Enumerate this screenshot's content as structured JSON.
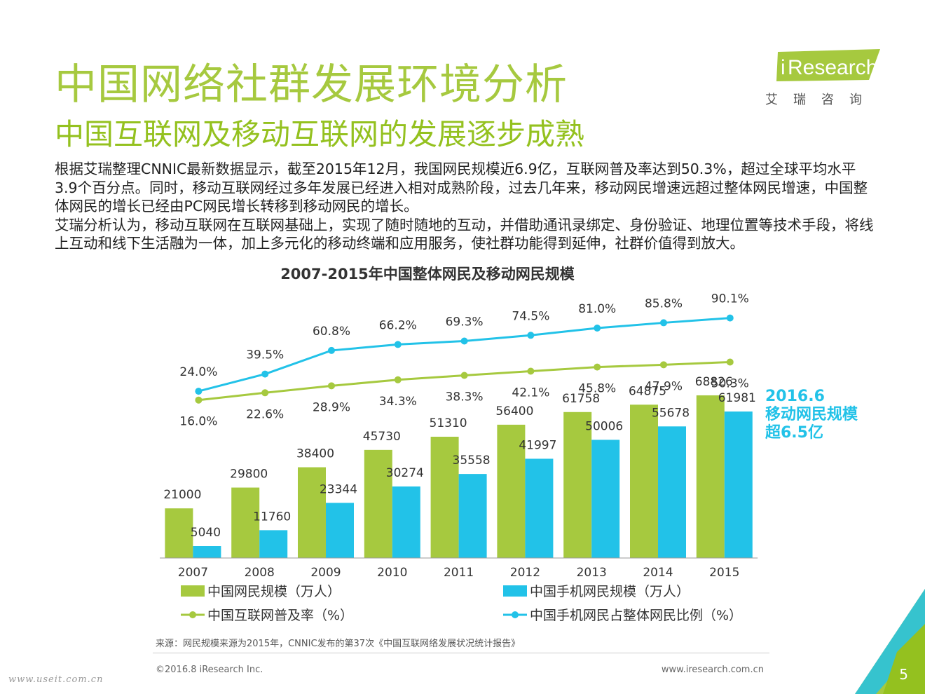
{
  "page": {
    "title": "中国网络社群发展环境分析",
    "subtitle": "中国互联网及移动互联网的发展逐步成熟",
    "paragraphs": [
      "根据艾瑞整理CNNIC最新数据显示，截至2015年12月，我国网民规模近6.9亿，互联网普及率达到50.3%，超过全球平均水平3.9个百分点。同时，移动互联网经过多年发展已经进入相对成熟阶段，过去几年来，移动网民增速远超过整体网民增速，中国整体网民的增长已经由PC网民增长转移到移动网民的增长。",
      "艾瑞分析认为，移动互联网在互联网基础上，实现了随时随地的互动，并借助通讯录绑定、身份验证、地理位置等技术手段，将线上互动和线下生活融为一体，加上多元化的移动终端和应用服务，使社群功能得到延伸，社群价值得到放大。"
    ],
    "annotation": [
      "2016.6",
      "移动网民规模",
      "超6.5亿"
    ],
    "source": "来源：网民规模来源为2015年，CNNIC发布的第37次《中国互联网络发展状况统计报告》",
    "copyright": "©2016.8 iResearch Inc.",
    "url": "www.iresearch.com.cn",
    "page_number": "5",
    "watermark": "www.useit.com.cn"
  },
  "logo": {
    "brand_i": "i",
    "brand_rest": "Research",
    "chinese": "艾瑞咨询"
  },
  "colors": {
    "green": "#a6c93f",
    "blue": "#22c2e8",
    "title_green": "#a6c93f"
  },
  "chart_data": {
    "type": "bar",
    "title": "2007-2015年中国整体网民及移动网民规模",
    "categories": [
      "2007",
      "2008",
      "2009",
      "2010",
      "2011",
      "2012",
      "2013",
      "2014",
      "2015"
    ],
    "series": [
      {
        "name": "中国网民规模（万人）",
        "kind": "bar",
        "color": "#a6c93f",
        "values": [
          21000,
          29800,
          38400,
          45730,
          51310,
          56400,
          61758,
          64875,
          68826
        ]
      },
      {
        "name": "中国手机网民规模（万人）",
        "kind": "bar",
        "color": "#22c2e8",
        "values": [
          5040,
          11760,
          23344,
          30274,
          35558,
          41997,
          50006,
          55678,
          61981
        ]
      },
      {
        "name": "中国互联网普及率（%）",
        "kind": "line",
        "color": "#a6c93f",
        "values": [
          16.0,
          22.6,
          28.9,
          34.3,
          38.3,
          42.1,
          45.8,
          47.9,
          50.3
        ],
        "labels": [
          "16.0%",
          "22.6%",
          "28.9%",
          "34.3%",
          "38.3%",
          "42.1%",
          "45.8%",
          "47.9%",
          "50.3%"
        ]
      },
      {
        "name": "中国手机网民占整体网民比例（%）",
        "kind": "line",
        "color": "#22c2e8",
        "values": [
          24.0,
          39.5,
          60.8,
          66.2,
          69.3,
          74.5,
          81.0,
          85.8,
          90.1
        ],
        "labels": [
          "24.0%",
          "39.5%",
          "60.8%",
          "66.2%",
          "69.3%",
          "74.5%",
          "81.0%",
          "85.8%",
          "90.1%"
        ]
      }
    ],
    "ylim_bars": [
      0,
      80000
    ],
    "legend": [
      "中国网民规模（万人）",
      "中国手机网民规模（万人）",
      "中国互联网普及率（%）",
      "中国手机网民占整体网民比例（%）"
    ],
    "legend_position": "bottom"
  }
}
